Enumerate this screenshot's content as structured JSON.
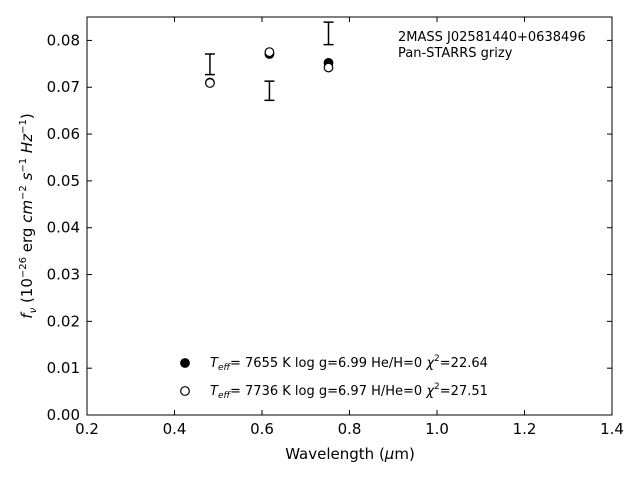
{
  "chart_data": {
    "type": "scatter",
    "xlabel": "Wavelength (μm)",
    "ylabel": "f_ν (10^-26 erg cm^-2 s^-1 Hz^-1)",
    "xlim": [
      0.2,
      1.4
    ],
    "ylim": [
      0.0,
      0.085
    ],
    "xticks": [
      "0.2",
      "0.4",
      "0.6",
      "0.8",
      "1.0",
      "1.2",
      "1.4"
    ],
    "yticks": [
      "0.00",
      "0.01",
      "0.02",
      "0.03",
      "0.04",
      "0.05",
      "0.06",
      "0.07",
      "0.08"
    ],
    "grid": false,
    "annotation": {
      "line1": "2MASS J02581440+0638496",
      "line2": "Pan-STARRS grizy"
    },
    "observed": [
      {
        "x": 0.481,
        "y": 0.0749,
        "err_low": 0.0727,
        "err_high": 0.0771
      },
      {
        "x": 0.617,
        "y": 0.0692,
        "err_low": 0.0672,
        "err_high": 0.0713
      },
      {
        "x": 0.752,
        "y": 0.0815,
        "err_low": 0.0791,
        "err_high": 0.0839
      }
    ],
    "series": [
      {
        "marker": "filled-circle",
        "label": "T_eff=  7655 K  log g=6.99  He/H=0  χ²=22.64",
        "points": [
          {
            "x": 0.481,
            "y": 0.071
          },
          {
            "x": 0.617,
            "y": 0.0771
          },
          {
            "x": 0.752,
            "y": 0.0752
          }
        ]
      },
      {
        "marker": "open-circle",
        "label": "T_eff=  7736 K  log g=6.97  H/He=0  χ²=27.51",
        "points": [
          {
            "x": 0.481,
            "y": 0.0709
          },
          {
            "x": 0.617,
            "y": 0.0775
          },
          {
            "x": 0.752,
            "y": 0.0742
          }
        ]
      }
    ],
    "legend": {
      "placement": "bottom-center",
      "entries": [
        {
          "teff": "7655 K",
          "logg": "log g=6.99",
          "comp": "He/H=0",
          "chi2": "=22.64"
        },
        {
          "teff": "7736 K",
          "logg": "log g=6.97",
          "comp": "H/He=0",
          "chi2": "=27.51"
        }
      ]
    }
  }
}
